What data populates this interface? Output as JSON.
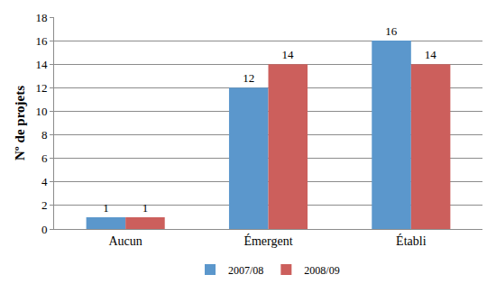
{
  "chart_data": {
    "type": "bar",
    "y_label": "Nº de projets",
    "categories": [
      "Aucun",
      "Émergent",
      "Établi"
    ],
    "series": [
      {
        "name": "2007/08",
        "color": "#5b97cc",
        "values": [
          1,
          12,
          16
        ]
      },
      {
        "name": "2008/09",
        "color": "#cc5f5c",
        "values": [
          1,
          14,
          14
        ]
      }
    ],
    "ylim": [
      0,
      18
    ],
    "yticks": [
      0,
      2,
      4,
      6,
      8,
      10,
      12,
      14,
      16,
      18
    ],
    "grid": true,
    "legend": "bottom",
    "data_labels": true
  }
}
